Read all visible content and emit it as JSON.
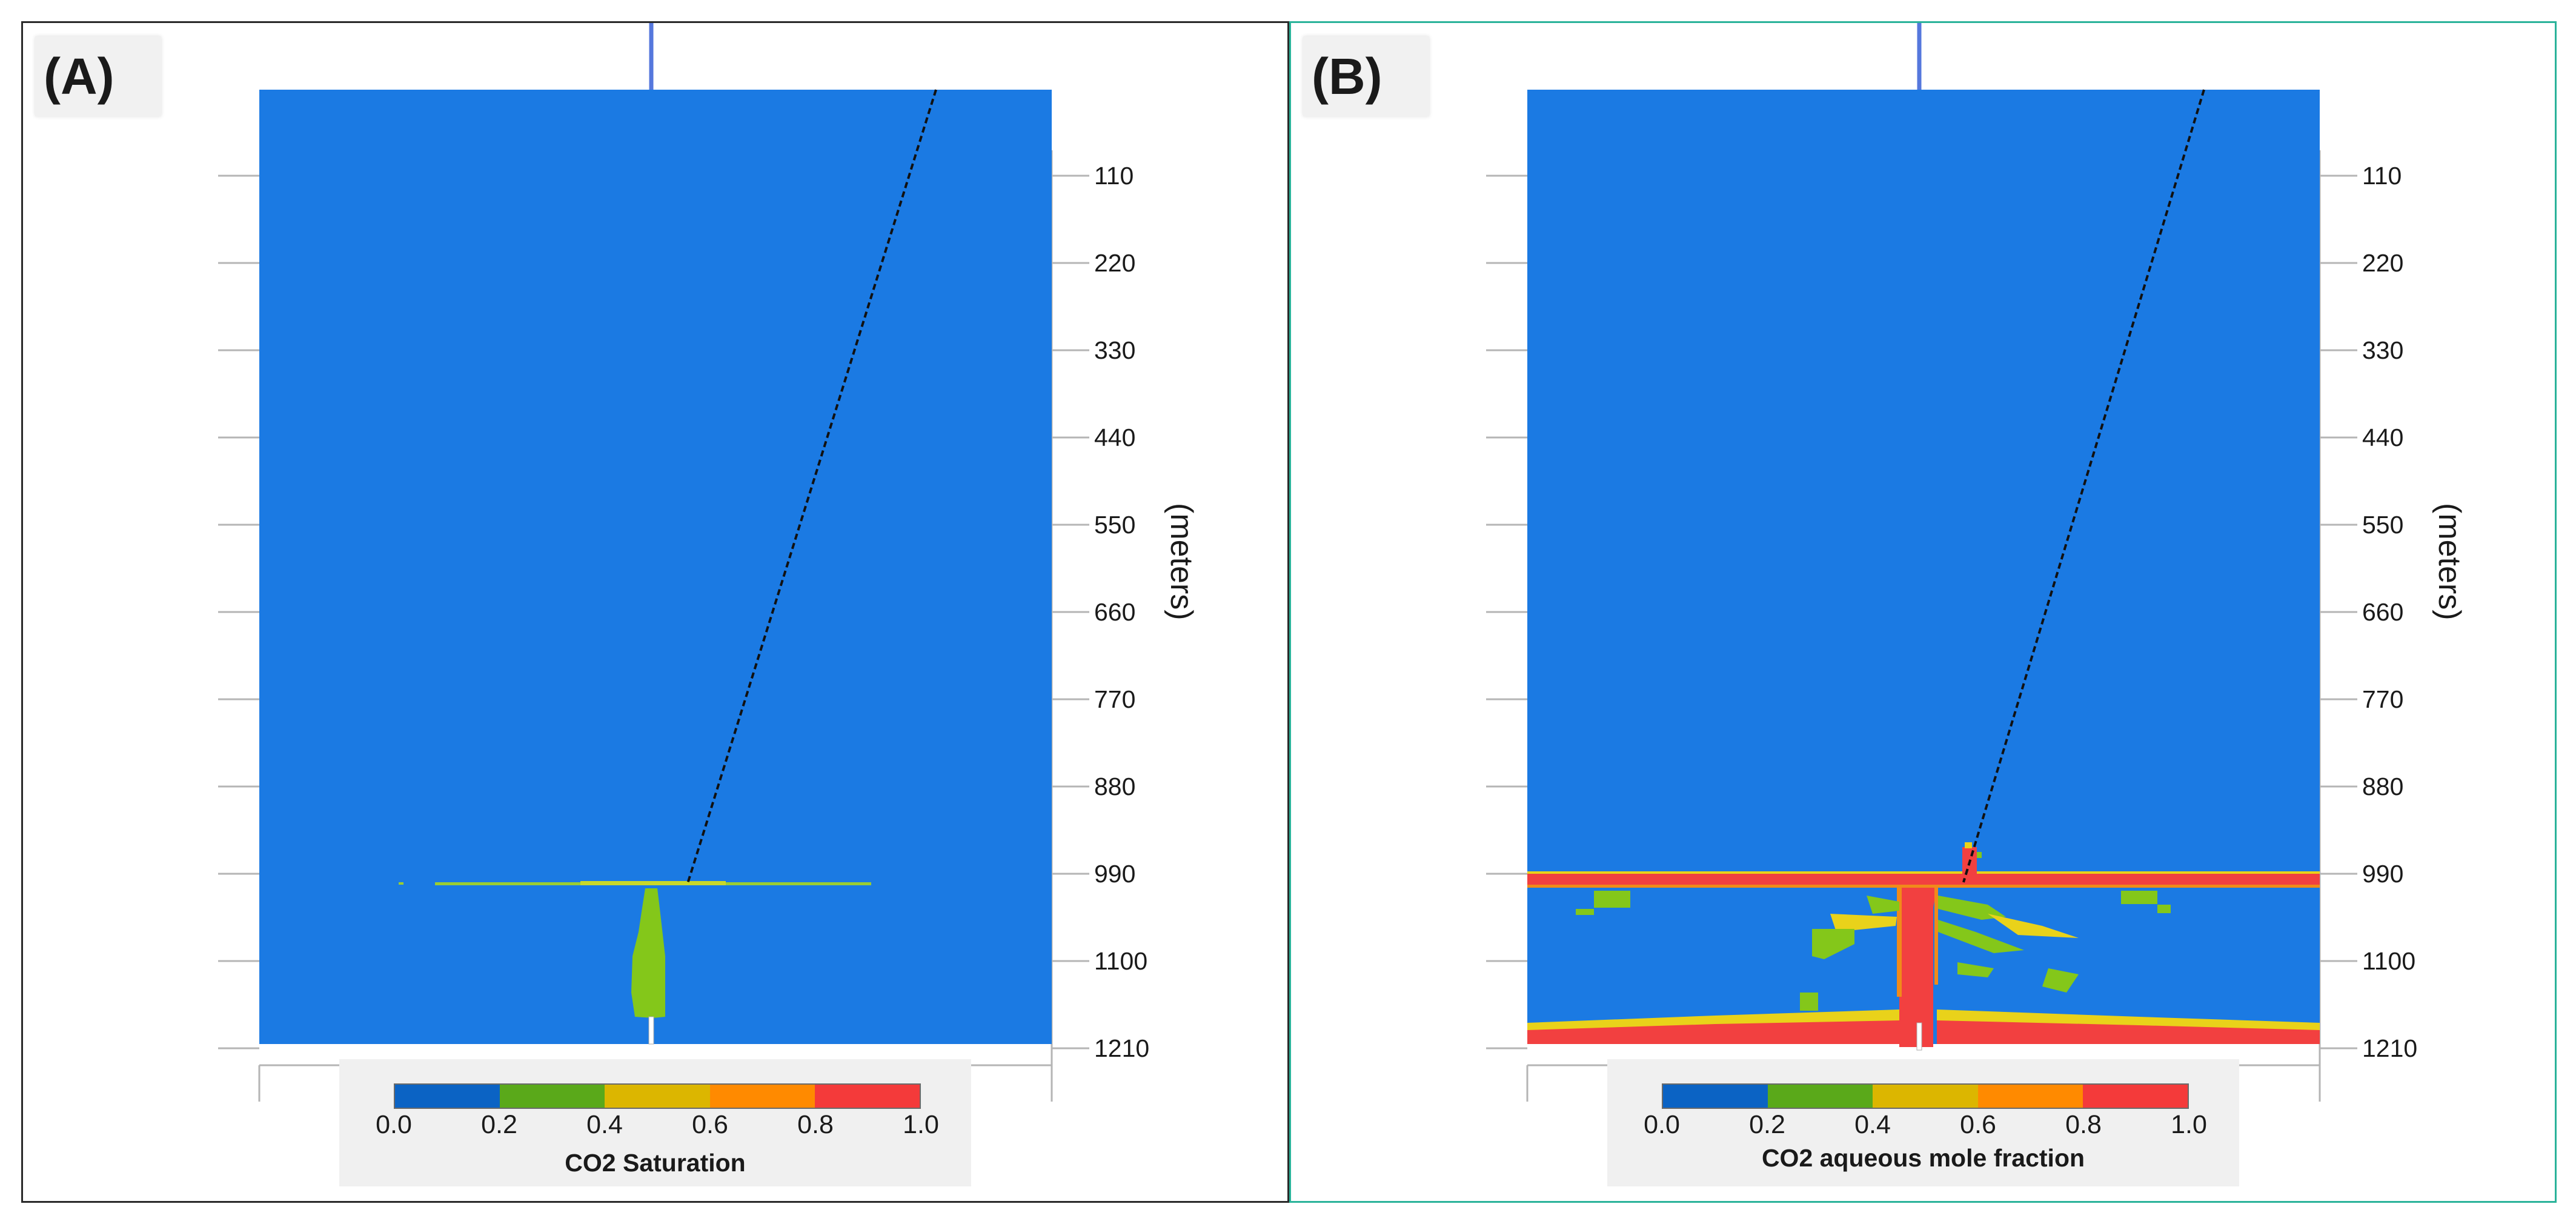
{
  "panels": [
    {
      "label": "(A)",
      "legend_title": "CO2 Saturation",
      "border_color": "#2a2a2a"
    },
    {
      "label": "(B)",
      "legend_title": "CO2 aqueous mole fraction",
      "border_color": "#2bb39a"
    }
  ],
  "depth_axis": {
    "units": "(meters)",
    "ticks": [
      "110",
      "220",
      "330",
      "440",
      "550",
      "660",
      "770",
      "880",
      "990",
      "1100",
      "1210"
    ]
  },
  "colorbar": {
    "tick_labels": [
      "0.0",
      "0.2",
      "0.4",
      "0.6",
      "0.8",
      "1.0"
    ],
    "colors": [
      "#0b63c4",
      "#5aa91a",
      "#dcb600",
      "#ff8a00",
      "#f43a3a"
    ]
  },
  "colors": {
    "background_blue": "#1b7ae3",
    "plume_green": "#84c71a",
    "red": "#f24040",
    "orange": "#f08a1a",
    "yellow": "#e9d21a",
    "well_line": "#5577dd",
    "fault_line": "#111111"
  }
}
